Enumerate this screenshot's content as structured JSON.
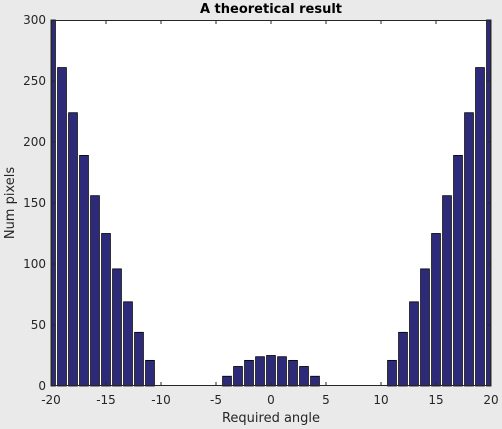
{
  "chart_data": {
    "type": "bar",
    "title": "A theoretical result",
    "xlabel": "Required angle",
    "ylabel": "Num pixels",
    "xlim": [
      -20,
      20
    ],
    "ylim": [
      0,
      300
    ],
    "xticks": [
      -20,
      -15,
      -10,
      -5,
      0,
      5,
      10,
      15,
      20
    ],
    "yticks": [
      0,
      50,
      100,
      150,
      200,
      250,
      300
    ],
    "grid": false,
    "bar_color": "#2e2a7a",
    "bar_edge_color": "#000000",
    "background_color": "#eaeaea",
    "axes_color": "#ffffff",
    "x": [
      -20,
      -19,
      -18,
      -17,
      -16,
      -15,
      -14,
      -13,
      -12,
      -11,
      -10,
      -9,
      -8,
      -7,
      -6,
      -5,
      -4,
      -3,
      -2,
      -1,
      0,
      1,
      2,
      3,
      4,
      5,
      6,
      7,
      8,
      9,
      10,
      11,
      12,
      13,
      14,
      15,
      16,
      17,
      18,
      19,
      20
    ],
    "values": [
      300,
      261,
      224,
      189,
      156,
      125,
      96,
      69,
      44,
      21,
      0,
      0,
      0,
      0,
      0,
      0,
      8,
      16,
      21,
      24,
      25,
      24,
      21,
      16,
      8,
      0,
      0,
      0,
      0,
      0,
      0,
      21,
      44,
      69,
      96,
      125,
      156,
      189,
      224,
      261,
      300
    ]
  }
}
